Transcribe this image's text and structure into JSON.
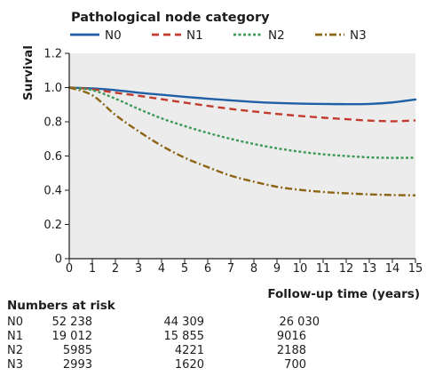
{
  "chart_data": {
    "type": "line",
    "title": "",
    "legend_title": "Pathological node category",
    "legend_position": "top",
    "xlabel": "Follow-up time (years)",
    "ylabel": "Survival",
    "xlim": [
      0,
      15
    ],
    "ylim": [
      0,
      1.2
    ],
    "xticks": [
      0,
      1,
      2,
      3,
      4,
      5,
      6,
      7,
      8,
      9,
      10,
      11,
      12,
      13,
      14,
      15
    ],
    "yticks": [
      "0",
      "0.2",
      "0.4",
      "0.6",
      "0.8",
      "1.0",
      "1.2"
    ],
    "grid": false,
    "background": "#ececec",
    "series": [
      {
        "name": "N0",
        "color": "#1f5fa6",
        "dash": "solid",
        "x": [
          0,
          1,
          2,
          3,
          4,
          5,
          6,
          7,
          8,
          9,
          10,
          11,
          12,
          13,
          14,
          15
        ],
        "y": [
          1.0,
          0.995,
          0.985,
          0.97,
          0.958,
          0.946,
          0.935,
          0.925,
          0.916,
          0.91,
          0.906,
          0.904,
          0.903,
          0.904,
          0.913,
          0.93
        ]
      },
      {
        "name": "N1",
        "color": "#c23b2e",
        "dash": "dash",
        "x": [
          0,
          1,
          2,
          3,
          4,
          5,
          6,
          7,
          8,
          9,
          10,
          11,
          12,
          13,
          14,
          15
        ],
        "y": [
          1.0,
          0.99,
          0.97,
          0.952,
          0.932,
          0.912,
          0.893,
          0.875,
          0.86,
          0.846,
          0.834,
          0.824,
          0.815,
          0.807,
          0.803,
          0.808
        ]
      },
      {
        "name": "N2",
        "color": "#3d9a55",
        "dash": "dot",
        "x": [
          0,
          1,
          2,
          3,
          4,
          5,
          6,
          7,
          8,
          9,
          10,
          11,
          12,
          13,
          14,
          15
        ],
        "y": [
          1.0,
          0.985,
          0.935,
          0.875,
          0.82,
          0.775,
          0.735,
          0.7,
          0.67,
          0.645,
          0.625,
          0.61,
          0.6,
          0.592,
          0.589,
          0.59
        ]
      },
      {
        "name": "N3",
        "color": "#8c6514",
        "dash": "dashdot",
        "x": [
          0,
          1,
          2,
          3,
          4,
          5,
          6,
          7,
          8,
          9,
          10,
          11,
          12,
          13,
          14,
          15
        ],
        "y": [
          1.0,
          0.955,
          0.84,
          0.745,
          0.66,
          0.59,
          0.535,
          0.485,
          0.45,
          0.42,
          0.402,
          0.39,
          0.382,
          0.376,
          0.372,
          0.37
        ]
      }
    ]
  },
  "risk_table": {
    "title": "Numbers at risk",
    "rows": [
      {
        "label": "N0",
        "values": [
          "52 238",
          "44 309",
          "26 030"
        ]
      },
      {
        "label": "N1",
        "values": [
          "19 012",
          "15 855",
          "9016"
        ]
      },
      {
        "label": "N2",
        "values": [
          "5985",
          "4221",
          "2188"
        ]
      },
      {
        "label": "N3",
        "values": [
          "2993",
          "1620",
          "700"
        ]
      }
    ]
  }
}
